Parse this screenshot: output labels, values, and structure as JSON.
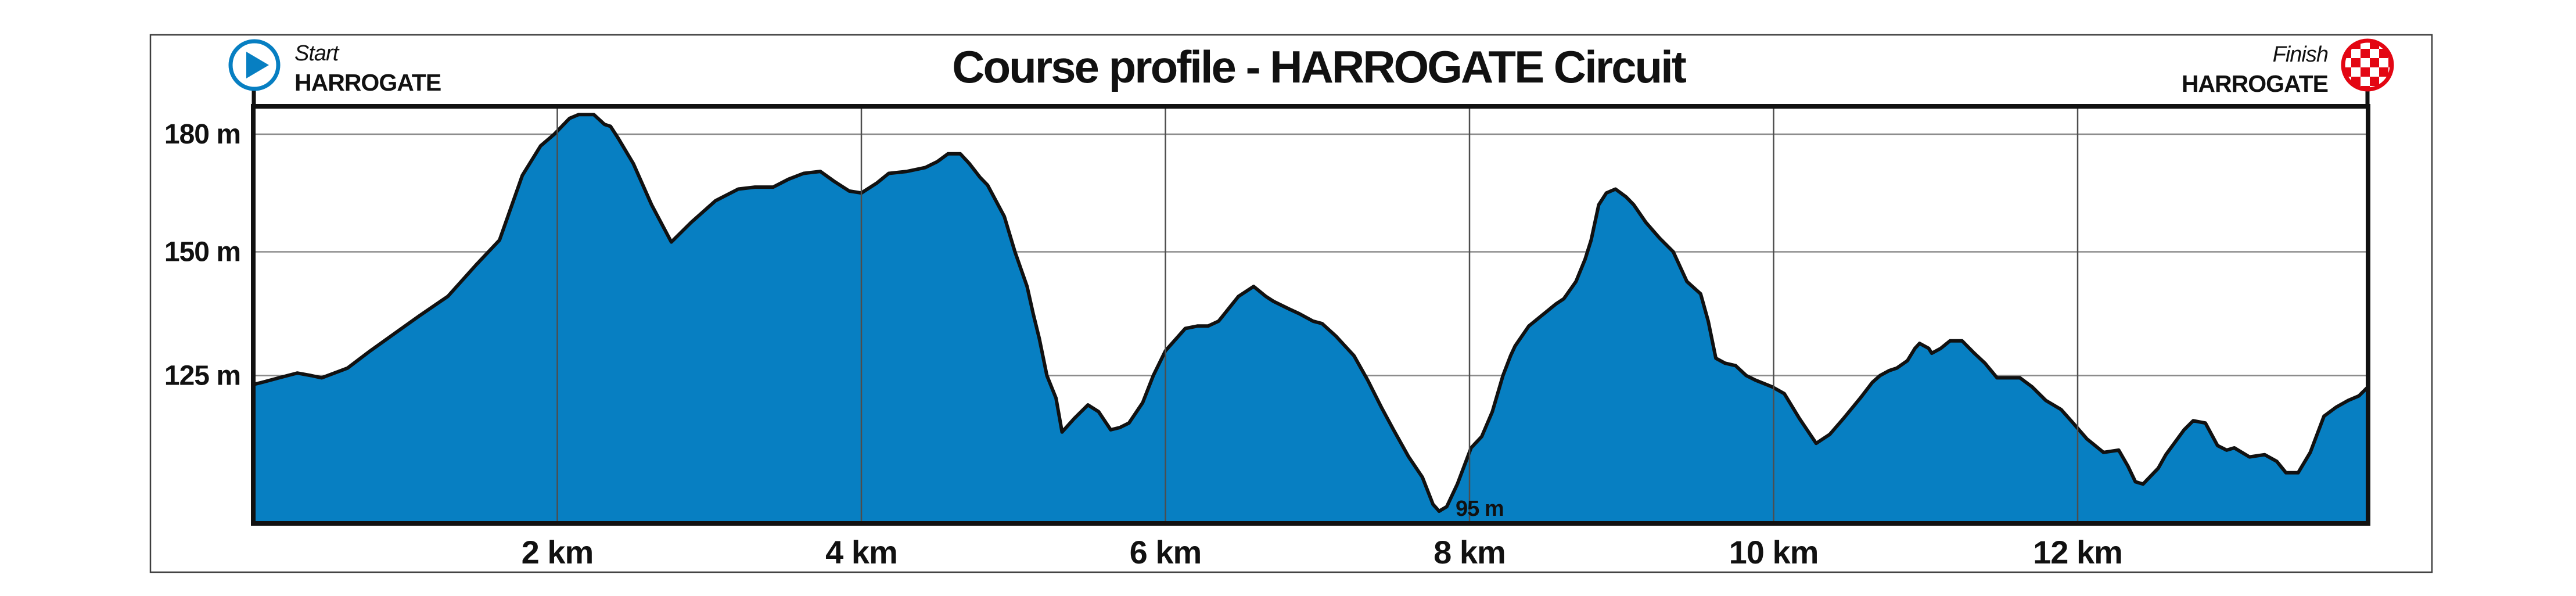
{
  "colors": {
    "area_blue": "#077fc2",
    "outline_black": "#111111",
    "finish_red": "#e30613",
    "grid_horizontal": "#8a8a8a",
    "grid_vertical": "#4d4d4d",
    "frame_gray": "#3d3d3d",
    "ink": "#111111",
    "background": "#ffffff"
  },
  "header": {
    "start": {
      "label": "Start",
      "place": "HARROGATE"
    },
    "finish": {
      "label": "Finish",
      "place": "HARROGATE"
    }
  },
  "icons": {
    "start": "play-circle-icon",
    "finish": "checkered-flag-circle-icon"
  },
  "chart_data": {
    "type": "area",
    "title": "Course profile - HARROGATE Circuit",
    "x_unit": "km",
    "y_unit": "m",
    "x_range_km": [
      0,
      13.91
    ],
    "y_ticks": [
      {
        "m": 180,
        "label": "180 m"
      },
      {
        "m": 150,
        "label": "150 m"
      },
      {
        "m": 125,
        "label": "125 m"
      }
    ],
    "x_ticks": [
      {
        "km": 2,
        "label": "2 km"
      },
      {
        "km": 4,
        "label": "4 km"
      },
      {
        "km": 6,
        "label": "6 km"
      },
      {
        "km": 8,
        "label": "8 km"
      },
      {
        "km": 10,
        "label": "10 km"
      },
      {
        "km": 12,
        "label": "12 km"
      }
    ],
    "grid": {
      "horizontal": true,
      "vertical": true
    },
    "annotation": {
      "label": "95 m",
      "km": 8.0,
      "m": 95
    },
    "y_anchors_m_frac": [
      [
        92.3,
        1.0
      ],
      [
        95,
        0.9707
      ],
      [
        125,
        0.6455
      ],
      [
        150,
        0.3489
      ],
      [
        180,
        0.0668
      ],
      [
        187.1,
        0.0
      ]
    ],
    "profile": [
      [
        0.0,
        123
      ],
      [
        0.06,
        123.5
      ],
      [
        0.17,
        124.5
      ],
      [
        0.29,
        125.5
      ],
      [
        0.38,
        125
      ],
      [
        0.45,
        124.5
      ],
      [
        0.62,
        126.5
      ],
      [
        0.77,
        130
      ],
      [
        0.93,
        133.5
      ],
      [
        1.09,
        137
      ],
      [
        1.28,
        141
      ],
      [
        1.47,
        147.5
      ],
      [
        1.62,
        153
      ],
      [
        1.77,
        169.5
      ],
      [
        1.89,
        177
      ],
      [
        1.98,
        180
      ],
      [
        2.08,
        184
      ],
      [
        2.14,
        185
      ],
      [
        2.24,
        185
      ],
      [
        2.31,
        182.5
      ],
      [
        2.35,
        182
      ],
      [
        2.4,
        179
      ],
      [
        2.5,
        172.5
      ],
      [
        2.62,
        162
      ],
      [
        2.75,
        152.5
      ],
      [
        2.88,
        157.5
      ],
      [
        3.04,
        163
      ],
      [
        3.19,
        166
      ],
      [
        3.3,
        166.5
      ],
      [
        3.42,
        166.5
      ],
      [
        3.52,
        168.5
      ],
      [
        3.62,
        170
      ],
      [
        3.73,
        170.5
      ],
      [
        3.82,
        168
      ],
      [
        3.92,
        165.5
      ],
      [
        4.0,
        165
      ],
      [
        4.1,
        167.5
      ],
      [
        4.18,
        170
      ],
      [
        4.3,
        170.5
      ],
      [
        4.42,
        171.5
      ],
      [
        4.5,
        173
      ],
      [
        4.57,
        175
      ],
      [
        4.65,
        175
      ],
      [
        4.71,
        172.5
      ],
      [
        4.78,
        169
      ],
      [
        4.83,
        167
      ],
      [
        4.94,
        159
      ],
      [
        5.01,
        150
      ],
      [
        5.09,
        143
      ],
      [
        5.13,
        137.5
      ],
      [
        5.17,
        132.5
      ],
      [
        5.22,
        125
      ],
      [
        5.28,
        120
      ],
      [
        5.32,
        112.5
      ],
      [
        5.4,
        115.5
      ],
      [
        5.49,
        118.5
      ],
      [
        5.56,
        117
      ],
      [
        5.64,
        113
      ],
      [
        5.7,
        113.5
      ],
      [
        5.76,
        114.5
      ],
      [
        5.85,
        119
      ],
      [
        5.92,
        125
      ],
      [
        6.0,
        130
      ],
      [
        6.13,
        134.5
      ],
      [
        6.21,
        135
      ],
      [
        6.28,
        135
      ],
      [
        6.35,
        136
      ],
      [
        6.48,
        141
      ],
      [
        6.58,
        143
      ],
      [
        6.66,
        141
      ],
      [
        6.71,
        140
      ],
      [
        6.81,
        138.5
      ],
      [
        6.88,
        137.5
      ],
      [
        6.97,
        136
      ],
      [
        7.03,
        135.5
      ],
      [
        7.12,
        133
      ],
      [
        7.24,
        129
      ],
      [
        7.33,
        124
      ],
      [
        7.42,
        118
      ],
      [
        7.5,
        113
      ],
      [
        7.6,
        107
      ],
      [
        7.69,
        102.5
      ],
      [
        7.76,
        96.5
      ],
      [
        7.8,
        95
      ],
      [
        7.85,
        96
      ],
      [
        7.92,
        101
      ],
      [
        8.01,
        109
      ],
      [
        8.08,
        111.5
      ],
      [
        8.15,
        117
      ],
      [
        8.22,
        125
      ],
      [
        8.27,
        129
      ],
      [
        8.3,
        131
      ],
      [
        8.39,
        135
      ],
      [
        8.47,
        137
      ],
      [
        8.57,
        139.5
      ],
      [
        8.62,
        140.5
      ],
      [
        8.7,
        144
      ],
      [
        8.76,
        148.5
      ],
      [
        8.8,
        153
      ],
      [
        8.85,
        162
      ],
      [
        8.9,
        165
      ],
      [
        8.96,
        166
      ],
      [
        9.03,
        164
      ],
      [
        9.08,
        162
      ],
      [
        9.16,
        157.5
      ],
      [
        9.25,
        153.5
      ],
      [
        9.34,
        150
      ],
      [
        9.43,
        144
      ],
      [
        9.52,
        141.5
      ],
      [
        9.57,
        136
      ],
      [
        9.62,
        128.5
      ],
      [
        9.68,
        127.5
      ],
      [
        9.75,
        127
      ],
      [
        9.82,
        125
      ],
      [
        9.88,
        124
      ],
      [
        9.99,
        122.5
      ],
      [
        10.07,
        121
      ],
      [
        10.17,
        115.5
      ],
      [
        10.28,
        110
      ],
      [
        10.37,
        112
      ],
      [
        10.46,
        115.5
      ],
      [
        10.57,
        120
      ],
      [
        10.65,
        123.5
      ],
      [
        10.7,
        125
      ],
      [
        10.76,
        126
      ],
      [
        10.81,
        126.5
      ],
      [
        10.88,
        128
      ],
      [
        10.93,
        130.5
      ],
      [
        10.96,
        131.5
      ],
      [
        11.02,
        130.5
      ],
      [
        11.04,
        129.5
      ],
      [
        11.1,
        130.5
      ],
      [
        11.16,
        132
      ],
      [
        11.24,
        132
      ],
      [
        11.32,
        129.5
      ],
      [
        11.39,
        127.5
      ],
      [
        11.47,
        124.5
      ],
      [
        11.57,
        124.5
      ],
      [
        11.62,
        124.5
      ],
      [
        11.7,
        122.5
      ],
      [
        11.79,
        119.5
      ],
      [
        11.89,
        117.5
      ],
      [
        11.97,
        114.5
      ],
      [
        12.06,
        111
      ],
      [
        12.17,
        108
      ],
      [
        12.27,
        108.5
      ],
      [
        12.33,
        105
      ],
      [
        12.38,
        101.5
      ],
      [
        12.43,
        101
      ],
      [
        12.53,
        104.5
      ],
      [
        12.58,
        107.5
      ],
      [
        12.7,
        113
      ],
      [
        12.76,
        115
      ],
      [
        12.84,
        114.5
      ],
      [
        12.92,
        109.5
      ],
      [
        12.98,
        108.5
      ],
      [
        13.03,
        109
      ],
      [
        13.13,
        107
      ],
      [
        13.23,
        107.5
      ],
      [
        13.31,
        106
      ],
      [
        13.37,
        103.5
      ],
      [
        13.45,
        103.5
      ],
      [
        13.53,
        108
      ],
      [
        13.62,
        116
      ],
      [
        13.7,
        118
      ],
      [
        13.78,
        119.5
      ],
      [
        13.85,
        120.5
      ],
      [
        13.88,
        121.5
      ],
      [
        13.91,
        122.5
      ]
    ]
  }
}
